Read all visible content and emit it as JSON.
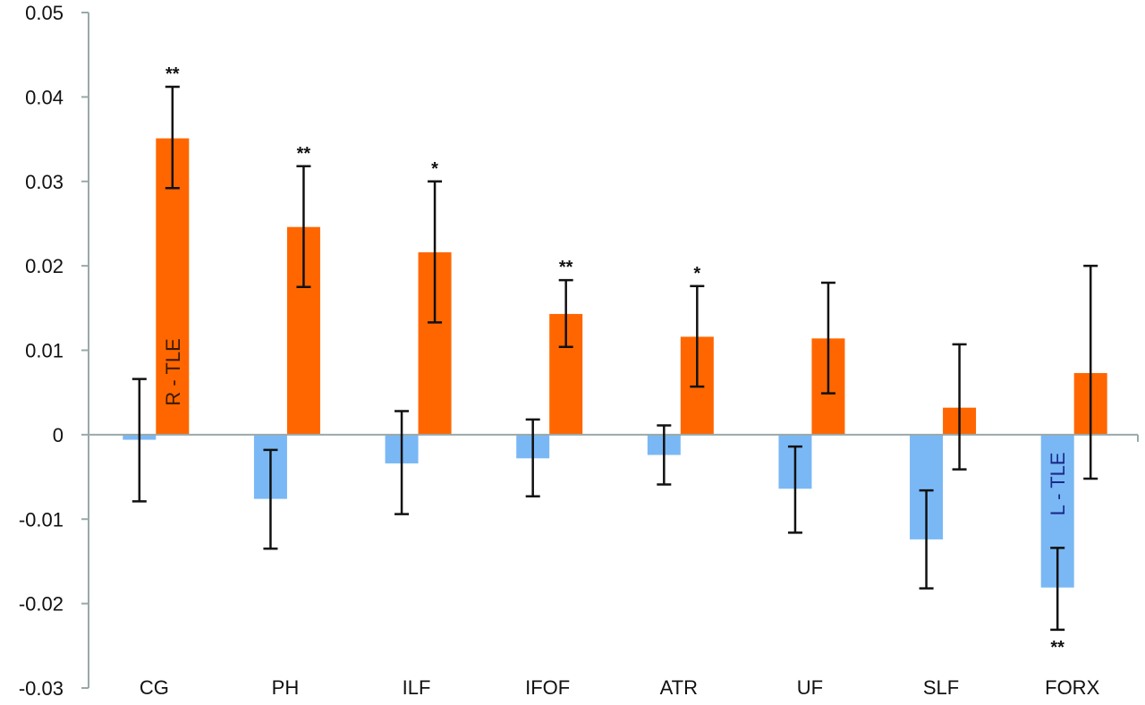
{
  "chart_data": {
    "type": "bar",
    "title": "",
    "xlabel": "",
    "ylabel": "",
    "ylim": [
      -0.03,
      0.05
    ],
    "yticks": [
      0.05,
      0.04,
      0.03,
      0.02,
      0.01,
      0,
      -0.01,
      -0.02,
      -0.03
    ],
    "ytick_labels": [
      "0.05",
      "0.04",
      "0.03",
      "0.02",
      "0.01",
      "0",
      "-0.01",
      "-0.02",
      "-0.03"
    ],
    "grid": false,
    "legend": null,
    "categories": [
      "CG",
      "PH",
      "ILF",
      "IFOF",
      "ATR",
      "UF",
      "SLF",
      "FORX"
    ],
    "series": [
      {
        "name": "L - TLE",
        "color": "#7ab8f5",
        "label_color": "#1a2a8a",
        "values": [
          -0.0006,
          -0.0076,
          -0.0034,
          -0.0028,
          -0.0024,
          -0.0064,
          -0.0124,
          -0.0181
        ],
        "error_low": [
          -0.0079,
          -0.0135,
          -0.0094,
          -0.0073,
          -0.0059,
          -0.0116,
          -0.0182,
          -0.0231
        ],
        "error_high": [
          0.0066,
          -0.0018,
          0.0028,
          0.0018,
          0.0011,
          -0.0014,
          -0.0066,
          -0.0134
        ],
        "significance": [
          "",
          "",
          "",
          "",
          "",
          "",
          "",
          "**"
        ],
        "inline_label_category": "FORX"
      },
      {
        "name": "R - TLE",
        "color": "#ff6600",
        "label_color": "#3a1a00",
        "values": [
          0.0351,
          0.0246,
          0.0216,
          0.0143,
          0.0116,
          0.0114,
          0.0032,
          0.0073
        ],
        "error_low": [
          0.0292,
          0.0175,
          0.0133,
          0.0104,
          0.0057,
          0.0049,
          -0.0041,
          -0.0052
        ],
        "error_high": [
          0.0412,
          0.0318,
          0.03,
          0.0183,
          0.0176,
          0.018,
          0.0107,
          0.02
        ],
        "significance": [
          "**",
          "**",
          "*",
          "**",
          "*",
          "",
          "",
          ""
        ],
        "inline_label_category": "CG"
      }
    ]
  }
}
